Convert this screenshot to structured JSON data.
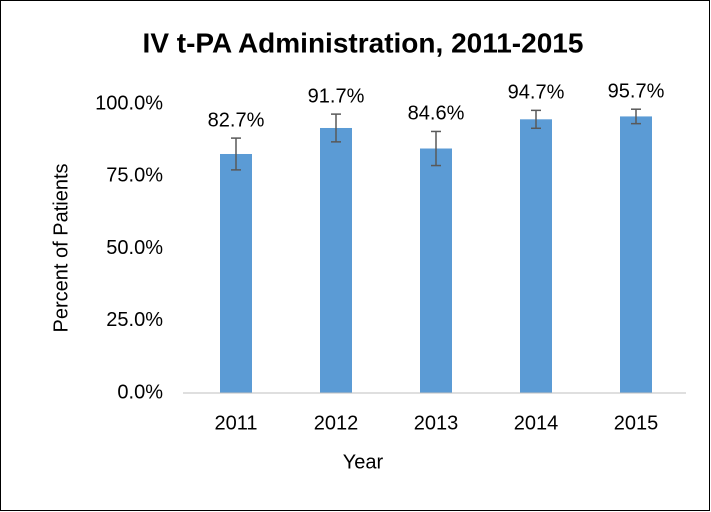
{
  "chart_data": {
    "type": "bar",
    "title": "IV t-PA Administration, 2011-2015",
    "x_label": "Year",
    "y_label": "Percent of Patients",
    "categories": [
      "2011",
      "2012",
      "2013",
      "2014",
      "2015"
    ],
    "values": [
      82.7,
      91.7,
      84.6,
      94.7,
      95.7
    ],
    "value_labels": [
      "82.7%",
      "91.7%",
      "84.6%",
      "94.7%",
      "95.7%"
    ],
    "errors": [
      5.5,
      4.8,
      5.9,
      3.1,
      2.5
    ],
    "color": "#5b9bd5",
    "ylim": [
      0,
      100
    ],
    "yticks": [
      {
        "value": 0,
        "label": "0.0%"
      },
      {
        "value": 25,
        "label": "25.0%"
      },
      {
        "value": 50,
        "label": "50.0%"
      },
      {
        "value": 75,
        "label": "75.0%"
      },
      {
        "value": 100,
        "label": "100.0%"
      }
    ],
    "grid": false
  }
}
